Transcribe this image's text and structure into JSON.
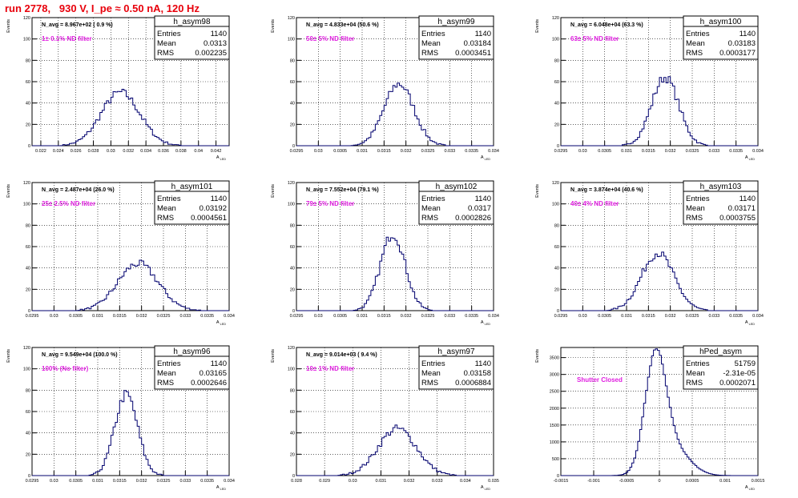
{
  "title": "run 2778,   930 V, I_pe ≈ 0.50 nA, 120 Hz",
  "colors": {
    "hist": "#00006e",
    "annot": "#e020e0",
    "title": "#e8000b",
    "grid": "#000000"
  },
  "chart_data": [
    {
      "type": "histogram",
      "name": "h_asym98",
      "stats": {
        "entries": "1140",
        "mean": "0.0313",
        "rms": "0.002235"
      },
      "navg": "N_avg = 8.967e+02 ( 0.9 %)",
      "filter": "1± 0.1% ND filter",
      "ylabel": "Events",
      "xlabel": "A_LED",
      "xlim": [
        0.021,
        0.0435
      ],
      "ylim": [
        0,
        120
      ],
      "xticks": [
        "0.022",
        "0.024",
        "0.026",
        "0.028",
        "0.03",
        "0.032",
        "0.034",
        "0.036",
        "0.038",
        "0.04",
        "0.042"
      ],
      "xtick_vals": [
        0.022,
        0.024,
        0.026,
        0.028,
        0.03,
        0.032,
        0.034,
        0.036,
        0.038,
        0.04,
        0.042
      ],
      "yticks": [
        "20",
        "40",
        "60",
        "80",
        "100",
        "120"
      ],
      "ytick_vals": [
        20,
        40,
        60,
        80,
        100,
        120
      ],
      "peak": {
        "x": 0.0311,
        "y": 55
      },
      "shape": {
        "mu": 0.0311,
        "sigma": 0.0022,
        "amp": 50,
        "bins": 90
      }
    },
    {
      "type": "histogram",
      "name": "h_asym99",
      "stats": {
        "entries": "1140",
        "mean": "0.03184",
        "rms": "0.0003451"
      },
      "navg": "N_avg = 4.833e+04 (50.6 %)",
      "filter": "50± 5% ND filter",
      "ylabel": "Events",
      "xlabel": "A_LED",
      "xlim": [
        0.0295,
        0.034
      ],
      "ylim": [
        0,
        120
      ],
      "xticks": [
        "0.0295",
        "0.03",
        "0.0305",
        "0.031",
        "0.0315",
        "0.032",
        "0.0325",
        "0.033",
        "0.0335",
        "0.034"
      ],
      "xtick_vals": [
        0.0295,
        0.03,
        0.0305,
        0.031,
        0.0315,
        0.032,
        0.0325,
        0.033,
        0.0335,
        0.034
      ],
      "yticks": [
        "20",
        "40",
        "60",
        "80",
        "100",
        "120"
      ],
      "ytick_vals": [
        20,
        40,
        60,
        80,
        100,
        120
      ],
      "peak": {
        "x": 0.0318,
        "y": 68
      },
      "shape": {
        "mu": 0.03184,
        "sigma": 0.00034,
        "amp": 58,
        "bins": 90
      }
    },
    {
      "type": "histogram",
      "name": "h_asym100",
      "stats": {
        "entries": "1140",
        "mean": "0.03183",
        "rms": "0.0003177"
      },
      "navg": "N_avg = 6.048e+04 (63.3 %)",
      "filter": "63± 5% ND filter",
      "ylabel": "Events",
      "xlabel": "A_LED",
      "xlim": [
        0.0295,
        0.034
      ],
      "ylim": [
        0,
        120
      ],
      "xticks": [
        "0.0295",
        "0.03",
        "0.0305",
        "0.031",
        "0.0315",
        "0.032",
        "0.0325",
        "0.033",
        "0.0335",
        "0.034"
      ],
      "xtick_vals": [
        0.0295,
        0.03,
        0.0305,
        0.031,
        0.0315,
        0.032,
        0.0325,
        0.033,
        0.0335,
        0.034
      ],
      "yticks": [
        "20",
        "40",
        "60",
        "80",
        "100",
        "120"
      ],
      "ytick_vals": [
        20,
        40,
        60,
        80,
        100,
        120
      ],
      "peak": {
        "x": 0.032,
        "y": 74
      },
      "shape": {
        "mu": 0.03188,
        "sigma": 0.00031,
        "amp": 64,
        "bins": 90
      }
    },
    {
      "type": "histogram",
      "name": "h_asym101",
      "stats": {
        "entries": "1140",
        "mean": "0.03192",
        "rms": "0.0004561"
      },
      "navg": "N_avg = 2.487e+04 (26.0 %)",
      "filter": "25± 2.5% ND filter",
      "ylabel": "Events",
      "xlabel": "A_LED",
      "xlim": [
        0.0295,
        0.034
      ],
      "ylim": [
        0,
        120
      ],
      "xticks": [
        "0.0295",
        "0.03",
        "0.0305",
        "0.031",
        "0.0315",
        "0.032",
        "0.0325",
        "0.033",
        "0.0335",
        "0.034"
      ],
      "xtick_vals": [
        0.0295,
        0.03,
        0.0305,
        0.031,
        0.0315,
        0.032,
        0.0325,
        0.033,
        0.0335,
        0.034
      ],
      "yticks": [
        "20",
        "40",
        "60",
        "80",
        "100",
        "120"
      ],
      "ytick_vals": [
        20,
        40,
        60,
        80,
        100,
        120
      ],
      "peak": {
        "x": 0.0319,
        "y": 52
      },
      "shape": {
        "mu": 0.03192,
        "sigma": 0.00046,
        "amp": 44,
        "bins": 90
      }
    },
    {
      "type": "histogram",
      "name": "h_asym102",
      "stats": {
        "entries": "1140",
        "mean": "0.0317",
        "rms": "0.0002826"
      },
      "navg": "N_avg = 7.552e+04 (79.1 %)",
      "filter": "79± 5% ND filter",
      "ylabel": "Events",
      "xlabel": "A_LED",
      "xlim": [
        0.0295,
        0.034
      ],
      "ylim": [
        0,
        120
      ],
      "xticks": [
        "0.0295",
        "0.03",
        "0.0305",
        "0.031",
        "0.0315",
        "0.032",
        "0.0325",
        "0.033",
        "0.0335",
        "0.034"
      ],
      "xtick_vals": [
        0.0295,
        0.03,
        0.0305,
        0.031,
        0.0315,
        0.032,
        0.0325,
        0.033,
        0.0335,
        0.034
      ],
      "yticks": [
        "20",
        "40",
        "60",
        "80",
        "100",
        "120"
      ],
      "ytick_vals": [
        20,
        40,
        60,
        80,
        100,
        120
      ],
      "peak": {
        "x": 0.0318,
        "y": 82
      },
      "shape": {
        "mu": 0.0317,
        "sigma": 0.00028,
        "amp": 72,
        "bins": 90
      }
    },
    {
      "type": "histogram",
      "name": "h_asym103",
      "stats": {
        "entries": "1140",
        "mean": "0.03171",
        "rms": "0.0003755"
      },
      "navg": "N_avg = 3.874e+04 (40.6 %)",
      "filter": "40± 4% ND filter",
      "ylabel": "Events",
      "xlabel": "A_LED",
      "xlim": [
        0.0295,
        0.034
      ],
      "ylim": [
        0,
        120
      ],
      "xticks": [
        "0.0295",
        "0.03",
        "0.0305",
        "0.031",
        "0.0315",
        "0.032",
        "0.0325",
        "0.033",
        "0.0335",
        "0.034"
      ],
      "xtick_vals": [
        0.0295,
        0.03,
        0.0305,
        0.031,
        0.0315,
        0.032,
        0.0325,
        0.033,
        0.0335,
        0.034
      ],
      "yticks": [
        "20",
        "40",
        "60",
        "80",
        "100",
        "120"
      ],
      "ytick_vals": [
        20,
        40,
        60,
        80,
        100,
        120
      ],
      "peak": {
        "x": 0.0318,
        "y": 60
      },
      "shape": {
        "mu": 0.03171,
        "sigma": 0.00037,
        "amp": 54,
        "bins": 90
      }
    },
    {
      "type": "histogram",
      "name": "h_asym96",
      "stats": {
        "entries": "1140",
        "mean": "0.03165",
        "rms": "0.0002646"
      },
      "navg": "N_avg = 9.549e+04 (100.0 %)",
      "filter": "100% (No filter)",
      "ylabel": "Events",
      "xlabel": "A_LED",
      "xlim": [
        0.0295,
        0.034
      ],
      "ylim": [
        0,
        120
      ],
      "xticks": [
        "0.0295",
        "0.03",
        "0.0305",
        "0.031",
        "0.0315",
        "0.032",
        "0.0325",
        "0.033",
        "0.0335",
        "0.034"
      ],
      "xtick_vals": [
        0.0295,
        0.03,
        0.0305,
        0.031,
        0.0315,
        0.032,
        0.0325,
        0.033,
        0.0335,
        0.034
      ],
      "yticks": [
        "20",
        "40",
        "60",
        "80",
        "100",
        "120"
      ],
      "ytick_vals": [
        20,
        40,
        60,
        80,
        100,
        120
      ],
      "peak": {
        "x": 0.0316,
        "y": 81
      },
      "shape": {
        "mu": 0.03165,
        "sigma": 0.00026,
        "amp": 76,
        "bins": 90
      }
    },
    {
      "type": "histogram",
      "name": "h_asym97",
      "stats": {
        "entries": "1140",
        "mean": "0.03158",
        "rms": "0.0006884"
      },
      "navg": "N_avg = 9.014e+03 ( 9.4 %)",
      "filter": "10± 1% ND filter",
      "ylabel": "Events",
      "xlabel": "A_LED",
      "xlim": [
        0.028,
        0.035
      ],
      "ylim": [
        0,
        120
      ],
      "xticks": [
        "0.028",
        "0.029",
        "0.03",
        "0.031",
        "0.032",
        "0.033",
        "0.034",
        "0.035"
      ],
      "xtick_vals": [
        0.028,
        0.029,
        0.03,
        0.031,
        0.032,
        0.033,
        0.034,
        0.035
      ],
      "yticks": [
        "20",
        "40",
        "60",
        "80",
        "100",
        "120"
      ],
      "ytick_vals": [
        20,
        40,
        60,
        80,
        100,
        120
      ],
      "peak": {
        "x": 0.0318,
        "y": 55
      },
      "shape": {
        "mu": 0.03158,
        "sigma": 0.00068,
        "amp": 44,
        "bins": 90
      }
    },
    {
      "type": "histogram",
      "name": "hPed_asym",
      "stats": {
        "entries": "51759",
        "mean": "-2.31e-05",
        "rms": "0.0002071"
      },
      "navg": "",
      "filter": "Shutter Closed",
      "ylabel": "Events",
      "xlabel": "A_LED",
      "xlim": [
        -0.0015,
        0.0015
      ],
      "ylim": [
        0,
        3800
      ],
      "xticks": [
        "-0.0015",
        "-0.001",
        "-0.0005",
        "0",
        "0.0005",
        "0.001",
        "0.0015"
      ],
      "xtick_vals": [
        -0.0015,
        -0.001,
        -0.0005,
        0,
        0.0005,
        0.001,
        0.0015
      ],
      "yticks": [
        "500",
        "1000",
        "1500",
        "2000",
        "2500",
        "3000",
        "3500"
      ],
      "ytick_vals": [
        500,
        1000,
        1500,
        2000,
        2500,
        3000,
        3500
      ],
      "peak": {
        "x": -5e-05,
        "y": 3550
      },
      "shape": {
        "mu": -6e-05,
        "sigma": 0.00016,
        "amp": 3300,
        "bins": 100,
        "shoulder": {
          "mu": 0.0002,
          "sigma": 0.00025,
          "amp": 800
        }
      }
    }
  ]
}
